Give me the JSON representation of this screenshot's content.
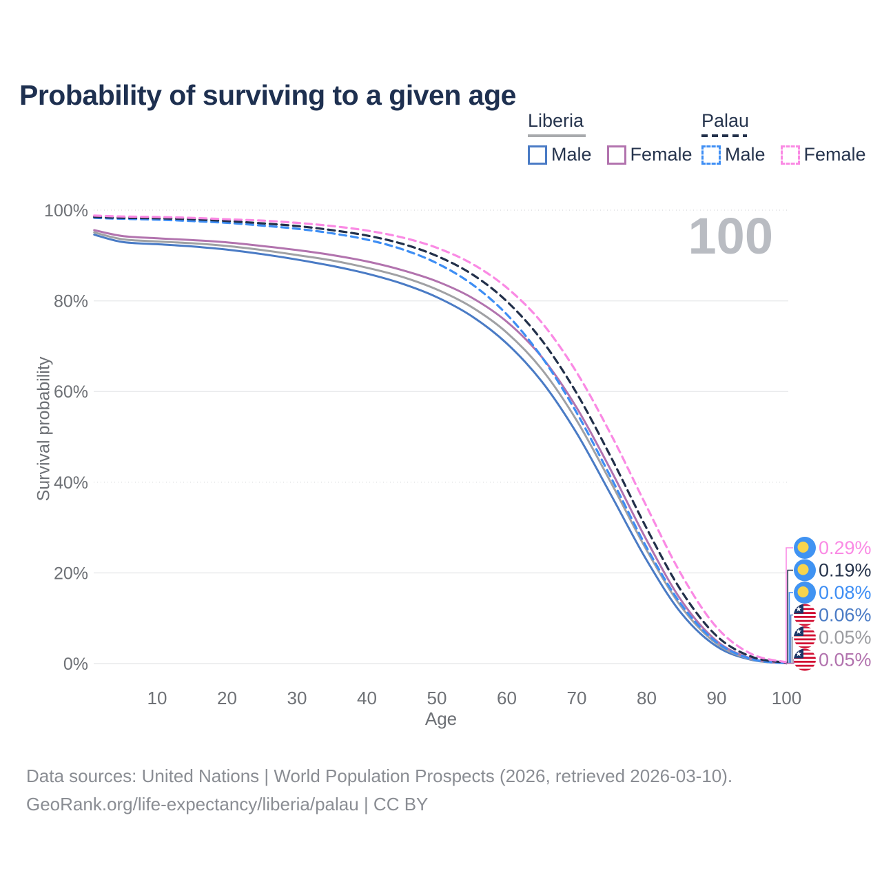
{
  "page_title": "Probability of surviving to a given age",
  "watermark": "100",
  "legend": {
    "groups": [
      {
        "name": "Liberia",
        "line_style": "solid",
        "underline_color": "#a8aaad",
        "items": [
          {
            "label": "Male",
            "color": "#4a7bc5"
          },
          {
            "label": "Female",
            "color": "#b273ae"
          }
        ]
      },
      {
        "name": "Palau",
        "line_style": "dashed",
        "underline_color": "#22304a",
        "items": [
          {
            "label": "Male",
            "color": "#3e8ef4"
          },
          {
            "label": "Female",
            "color": "#fa8ae4"
          }
        ]
      }
    ]
  },
  "chart_data": {
    "type": "line",
    "title": "Probability of surviving to a given age",
    "xlabel": "Age",
    "ylabel": "Survival probability",
    "xlim": [
      0,
      100
    ],
    "ylim": [
      0,
      100
    ],
    "grid": "horizontal",
    "legend_position": "top-right",
    "x_ticks": [
      10,
      20,
      30,
      40,
      50,
      60,
      70,
      80,
      90,
      100
    ],
    "y_ticks": [
      {
        "value": 0,
        "label": "0%"
      },
      {
        "value": 20,
        "label": "20%"
      },
      {
        "value": 40,
        "label": "40%"
      },
      {
        "value": 60,
        "label": "60%"
      },
      {
        "value": 80,
        "label": "80%"
      },
      {
        "value": 100,
        "label": "100%"
      }
    ],
    "ages": [
      1,
      5,
      10,
      15,
      20,
      25,
      30,
      35,
      40,
      45,
      50,
      55,
      60,
      65,
      70,
      75,
      80,
      85,
      90,
      95,
      100
    ],
    "series": [
      {
        "id": "liberia-male",
        "country": "Liberia",
        "sex": "Male",
        "color": "#4a7bc5",
        "dash": "solid",
        "values": [
          94.6,
          93.0,
          92.5,
          92.0,
          91.3,
          90.3,
          89.1,
          87.7,
          86.0,
          83.8,
          80.8,
          76.6,
          70.6,
          62.2,
          50.8,
          36.9,
          22.8,
          11.0,
          3.8,
          0.8,
          0.06
        ],
        "end_label": "0.06%"
      },
      {
        "id": "liberia-both",
        "country": "Liberia",
        "sex": "Both sexes",
        "color": "#a0a1a4",
        "dash": "solid",
        "values": [
          95.1,
          93.6,
          93.1,
          92.7,
          92.1,
          91.2,
          90.1,
          88.9,
          87.3,
          85.3,
          82.5,
          78.6,
          73.0,
          64.9,
          53.6,
          39.6,
          25.0,
          12.4,
          4.4,
          0.9,
          0.05
        ],
        "end_label": "0.05%"
      },
      {
        "id": "liberia-female",
        "country": "Liberia",
        "sex": "Female",
        "color": "#b273ae",
        "dash": "solid",
        "values": [
          95.6,
          94.3,
          93.8,
          93.4,
          92.9,
          92.1,
          91.2,
          90.1,
          88.7,
          86.8,
          84.3,
          80.7,
          75.4,
          67.6,
          56.4,
          42.3,
          27.2,
          13.8,
          5.0,
          1.1,
          0.05
        ],
        "end_label": "0.05%"
      },
      {
        "id": "palau-male",
        "country": "Palau",
        "sex": "Male",
        "color": "#3e8ef4",
        "dash": "dashed",
        "values": [
          98.3,
          98.1,
          97.9,
          97.6,
          97.2,
          96.6,
          95.9,
          94.9,
          93.5,
          91.4,
          88.3,
          83.7,
          77.0,
          67.6,
          55.3,
          40.7,
          25.6,
          12.9,
          4.7,
          1.0,
          0.08
        ],
        "end_label": "0.08%"
      },
      {
        "id": "palau-both",
        "country": "Palau",
        "sex": "Both sexes",
        "color": "#22304a",
        "dash": "dashed",
        "values": [
          98.5,
          98.3,
          98.2,
          98.0,
          97.6,
          97.1,
          96.5,
          95.6,
          94.4,
          92.6,
          89.9,
          85.9,
          79.9,
          71.3,
          59.6,
          45.2,
          29.8,
          15.9,
          6.1,
          1.5,
          0.19
        ],
        "end_label": "0.19%"
      },
      {
        "id": "palau-female",
        "country": "Palau",
        "sex": "Female",
        "color": "#fa8ae4",
        "dash": "dashed",
        "values": [
          98.8,
          98.6,
          98.5,
          98.3,
          98.0,
          97.7,
          97.2,
          96.5,
          95.5,
          94.0,
          91.7,
          88.2,
          82.9,
          75.2,
          64.2,
          50.2,
          34.6,
          19.5,
          8.0,
          2.1,
          0.29
        ],
        "end_label": "0.29%"
      }
    ],
    "end_labels": [
      {
        "series": "palau-female",
        "flag": "palau",
        "text": "0.29%",
        "color": "#fa8ae4"
      },
      {
        "series": "palau-both",
        "flag": "palau",
        "text": "0.19%",
        "color": "#27344c"
      },
      {
        "series": "palau-male",
        "flag": "palau",
        "text": "0.08%",
        "color": "#3e8ef4"
      },
      {
        "series": "liberia-male",
        "flag": "liberia",
        "text": "0.06%",
        "color": "#4a7bc5"
      },
      {
        "series": "liberia-both",
        "flag": "liberia",
        "text": "0.05%",
        "color": "#9b9ca0"
      },
      {
        "series": "liberia-female",
        "flag": "liberia",
        "text": "0.05%",
        "color": "#b273ae"
      }
    ]
  },
  "footer": {
    "line1": "Data sources: United Nations | World Population Prospects (2026, retrieved 2026-03-10).",
    "line2": "GeoRank.org/life-expectancy/liberia/palau | CC BY"
  }
}
